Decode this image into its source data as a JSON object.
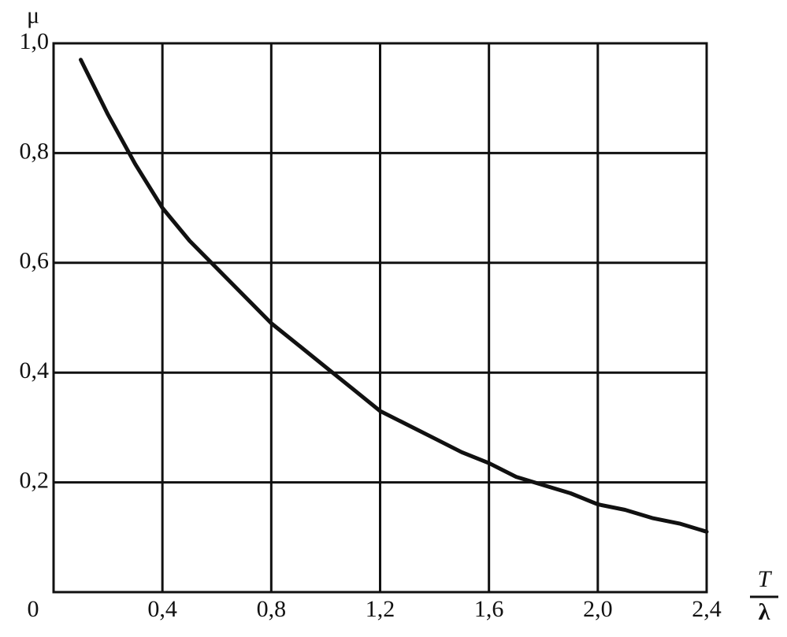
{
  "chart_data": {
    "type": "line",
    "ylabel": "μ",
    "xlabel_numerator": "T",
    "xlabel_denominator": "λ",
    "x": [
      0.1,
      0.2,
      0.3,
      0.4,
      0.5,
      0.6,
      0.7,
      0.8,
      0.9,
      1.0,
      1.1,
      1.2,
      1.3,
      1.4,
      1.5,
      1.6,
      1.7,
      1.8,
      1.9,
      2.0,
      2.1,
      2.2,
      2.3,
      2.4
    ],
    "values": [
      0.97,
      0.87,
      0.78,
      0.7,
      0.64,
      0.59,
      0.54,
      0.49,
      0.45,
      0.41,
      0.37,
      0.33,
      0.305,
      0.28,
      0.255,
      0.235,
      0.21,
      0.195,
      0.18,
      0.16,
      0.15,
      0.135,
      0.125,
      0.11
    ],
    "color": "#111111",
    "xlim": [
      0,
      2.4
    ],
    "ylim": [
      0,
      1.0
    ],
    "xticks": [
      0,
      {
        "value": 0.4,
        "label": "0,4"
      },
      {
        "value": 0.8,
        "label": "0,8"
      },
      {
        "value": 1.2,
        "label": "1,2"
      },
      {
        "value": 1.6,
        "label": "1,6"
      },
      {
        "value": 2.0,
        "label": "2,0"
      },
      {
        "value": 2.4,
        "label": "2,4"
      }
    ],
    "yticks": [
      {
        "value": 0.2,
        "label": "0,2"
      },
      {
        "value": 0.4,
        "label": "0,4"
      },
      {
        "value": 0.6,
        "label": "0,6"
      },
      {
        "value": 0.8,
        "label": "0,8"
      },
      {
        "value": 1.0,
        "label": "1,0"
      }
    ],
    "grid": true
  }
}
